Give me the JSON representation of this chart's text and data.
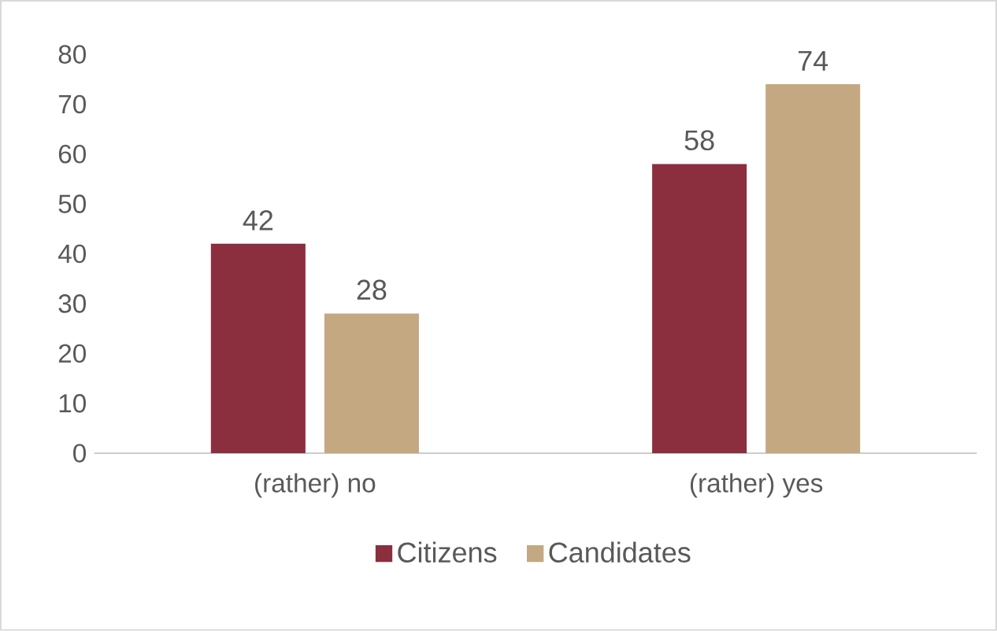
{
  "chart_data": {
    "type": "bar",
    "categories": [
      "(rather) no",
      "(rather) yes"
    ],
    "series": [
      {
        "name": "Citizens",
        "color": "#8b2e3e",
        "values": [
          42,
          58
        ]
      },
      {
        "name": "Candidates",
        "color": "#c4a882",
        "values": [
          28,
          74
        ]
      }
    ],
    "ylim": [
      0,
      80
    ],
    "yticks": [
      0,
      10,
      20,
      30,
      40,
      50,
      60,
      70,
      80
    ],
    "data_labels": true,
    "legend": "bottom"
  }
}
